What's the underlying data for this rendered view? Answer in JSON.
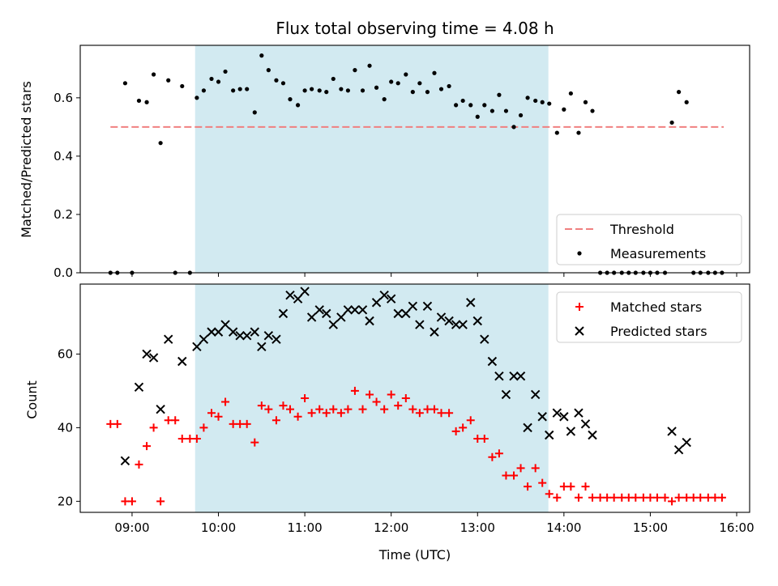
{
  "figure": {
    "title": "Flux total observing time = 4.08 h",
    "xlabel": "Time (UTC)",
    "xticks": [
      {
        "value": 9.0,
        "label": "09:00"
      },
      {
        "value": 10.0,
        "label": "10:00"
      },
      {
        "value": 11.0,
        "label": "11:00"
      },
      {
        "value": 12.0,
        "label": "12:00"
      },
      {
        "value": 13.0,
        "label": "13:00"
      },
      {
        "value": 14.0,
        "label": "14:00"
      },
      {
        "value": 15.0,
        "label": "15:00"
      },
      {
        "value": 16.0,
        "label": "16:00"
      }
    ],
    "shaded_span": {
      "start": 9.73,
      "end": 13.82,
      "color": "#add8e6"
    }
  },
  "chart_data": [
    {
      "type": "scatter",
      "ylabel": "Matched/Predicted stars",
      "xlim": [
        8.4,
        16.15
      ],
      "ylim": [
        0.0,
        0.78
      ],
      "yticks": [
        0.0,
        0.2,
        0.4,
        0.6
      ],
      "legend": {
        "placement": "bottom-right",
        "entries": [
          "Threshold",
          "Measurements"
        ]
      },
      "threshold": {
        "name": "Threshold",
        "value": 0.5,
        "x_range": [
          8.75,
          15.85
        ],
        "color": "#f08080"
      },
      "series": [
        {
          "name": "Measurements",
          "color": "#000000",
          "x": [
            8.75,
            8.83,
            8.92,
            9.0,
            9.08,
            9.17,
            9.25,
            9.33,
            9.42,
            9.5,
            9.58,
            9.67,
            9.75,
            9.83,
            9.92,
            10.0,
            10.08,
            10.17,
            10.25,
            10.33,
            10.42,
            10.5,
            10.58,
            10.67,
            10.75,
            10.83,
            10.92,
            11.0,
            11.08,
            11.17,
            11.25,
            11.33,
            11.42,
            11.5,
            11.58,
            11.67,
            11.75,
            11.83,
            11.92,
            12.0,
            12.08,
            12.17,
            12.25,
            12.33,
            12.42,
            12.5,
            12.58,
            12.67,
            12.75,
            12.83,
            12.92,
            13.0,
            13.08,
            13.17,
            13.25,
            13.33,
            13.42,
            13.5,
            13.58,
            13.67,
            13.75,
            13.83,
            13.92,
            14.0,
            14.08,
            14.17,
            14.25,
            14.33,
            14.42,
            14.5,
            14.58,
            14.67,
            14.75,
            14.83,
            14.92,
            15.0,
            15.08,
            15.17,
            15.25,
            15.33,
            15.42,
            15.5,
            15.58,
            15.67,
            15.75,
            15.83
          ],
          "y": [
            0.0,
            0.0,
            0.65,
            0.0,
            0.59,
            0.585,
            0.68,
            0.445,
            0.66,
            0.0,
            0.64,
            0.0,
            0.6,
            0.625,
            0.665,
            0.655,
            0.69,
            0.625,
            0.63,
            0.63,
            0.55,
            0.745,
            0.695,
            0.66,
            0.65,
            0.595,
            0.575,
            0.625,
            0.63,
            0.625,
            0.62,
            0.665,
            0.63,
            0.625,
            0.695,
            0.625,
            0.71,
            0.635,
            0.595,
            0.655,
            0.65,
            0.68,
            0.62,
            0.65,
            0.62,
            0.685,
            0.63,
            0.64,
            0.575,
            0.59,
            0.575,
            0.535,
            0.575,
            0.555,
            0.61,
            0.555,
            0.5,
            0.54,
            0.6,
            0.59,
            0.585,
            0.58,
            0.48,
            0.56,
            0.615,
            0.48,
            0.585,
            0.555,
            0.0,
            0.0,
            0.0,
            0.0,
            0.0,
            0.0,
            0.0,
            0.0,
            0.0,
            0.0,
            0.515,
            0.62,
            0.585,
            0.0,
            0.0,
            0.0,
            0.0,
            0.0
          ]
        }
      ]
    },
    {
      "type": "scatter",
      "ylabel": "Count",
      "xlim": [
        8.4,
        16.15
      ],
      "ylim": [
        17,
        79
      ],
      "yticks": [
        20,
        40,
        60
      ],
      "legend": {
        "placement": "top-right",
        "entries": [
          "Matched stars",
          "Predicted stars"
        ]
      },
      "series": [
        {
          "name": "Matched stars",
          "marker": "+",
          "color": "#ff0000",
          "x": [
            8.75,
            8.83,
            8.92,
            9.0,
            9.08,
            9.17,
            9.25,
            9.33,
            9.42,
            9.5,
            9.58,
            9.67,
            9.75,
            9.83,
            9.92,
            10.0,
            10.08,
            10.17,
            10.25,
            10.33,
            10.42,
            10.5,
            10.58,
            10.67,
            10.75,
            10.83,
            10.92,
            11.0,
            11.08,
            11.17,
            11.25,
            11.33,
            11.42,
            11.5,
            11.58,
            11.67,
            11.75,
            11.83,
            11.92,
            12.0,
            12.08,
            12.17,
            12.25,
            12.33,
            12.42,
            12.5,
            12.58,
            12.67,
            12.75,
            12.83,
            12.92,
            13.0,
            13.08,
            13.17,
            13.25,
            13.33,
            13.42,
            13.5,
            13.58,
            13.67,
            13.75,
            13.83,
            13.92,
            14.0,
            14.08,
            14.17,
            14.25,
            14.33,
            14.42,
            14.5,
            14.58,
            14.67,
            14.75,
            14.83,
            14.92,
            15.0,
            15.08,
            15.17,
            15.25,
            15.33,
            15.42,
            15.5,
            15.58,
            15.67,
            15.75,
            15.83
          ],
          "y": [
            41,
            41,
            20,
            20,
            30,
            35,
            40,
            20,
            42,
            42,
            37,
            37,
            37,
            40,
            44,
            43,
            47,
            41,
            41,
            41,
            36,
            46,
            45,
            42,
            46,
            45,
            43,
            48,
            44,
            45,
            44,
            45,
            44,
            45,
            50,
            45,
            49,
            47,
            45,
            49,
            46,
            48,
            45,
            44,
            45,
            45,
            44,
            44,
            39,
            40,
            42,
            37,
            37,
            32,
            33,
            27,
            27,
            29,
            24,
            29,
            25,
            22,
            21,
            24,
            24,
            21,
            24,
            21,
            21,
            21,
            21,
            21,
            21,
            21,
            21,
            21,
            21,
            21,
            20,
            21,
            21,
            21,
            21,
            21,
            21,
            21
          ]
        },
        {
          "name": "Predicted stars",
          "marker": "x",
          "color": "#000000",
          "x": [
            8.92,
            9.08,
            9.17,
            9.25,
            9.33,
            9.42,
            9.58,
            9.75,
            9.83,
            9.92,
            10.0,
            10.08,
            10.17,
            10.25,
            10.33,
            10.42,
            10.5,
            10.58,
            10.67,
            10.75,
            10.83,
            10.92,
            11.0,
            11.08,
            11.17,
            11.25,
            11.33,
            11.42,
            11.5,
            11.58,
            11.67,
            11.75,
            11.83,
            11.92,
            12.0,
            12.08,
            12.17,
            12.25,
            12.33,
            12.42,
            12.5,
            12.58,
            12.67,
            12.75,
            12.83,
            12.92,
            13.0,
            13.08,
            13.17,
            13.25,
            13.33,
            13.42,
            13.5,
            13.58,
            13.67,
            13.75,
            13.83,
            13.92,
            14.0,
            14.08,
            14.17,
            14.25,
            14.33,
            15.25,
            15.33,
            15.42
          ],
          "y": [
            31,
            51,
            60,
            59,
            45,
            64,
            58,
            62,
            64,
            66,
            66,
            68,
            66,
            65,
            65,
            66,
            62,
            65,
            64,
            71,
            76,
            75,
            77,
            70,
            72,
            71,
            68,
            70,
            72,
            72,
            72,
            69,
            74,
            76,
            75,
            71,
            71,
            73,
            68,
            73,
            66,
            70,
            69,
            68,
            68,
            74,
            69,
            64,
            58,
            54,
            49,
            54,
            54,
            40,
            49,
            43,
            38,
            44,
            43,
            39,
            44,
            41,
            38,
            39,
            34,
            36
          ]
        }
      ]
    }
  ]
}
